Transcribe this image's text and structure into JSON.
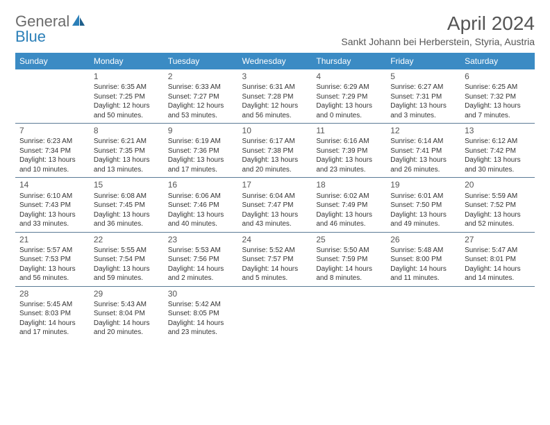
{
  "logo": {
    "text1": "General",
    "text2": "Blue"
  },
  "title": "April 2024",
  "subtitle": "Sankt Johann bei Herberstein, Styria, Austria",
  "colors": {
    "header_bg": "#3b8bc4",
    "header_text": "#ffffff",
    "row_border": "#5a7a95",
    "text": "#333333",
    "title_text": "#555555",
    "logo_gray": "#6b6b6b",
    "logo_blue": "#2b7fb8",
    "background": "#ffffff"
  },
  "day_headers": [
    "Sunday",
    "Monday",
    "Tuesday",
    "Wednesday",
    "Thursday",
    "Friday",
    "Saturday"
  ],
  "weeks": [
    [
      {
        "empty": true
      },
      {
        "num": "1",
        "sunrise": "Sunrise: 6:35 AM",
        "sunset": "Sunset: 7:25 PM",
        "daylight": "Daylight: 12 hours and 50 minutes."
      },
      {
        "num": "2",
        "sunrise": "Sunrise: 6:33 AM",
        "sunset": "Sunset: 7:27 PM",
        "daylight": "Daylight: 12 hours and 53 minutes."
      },
      {
        "num": "3",
        "sunrise": "Sunrise: 6:31 AM",
        "sunset": "Sunset: 7:28 PM",
        "daylight": "Daylight: 12 hours and 56 minutes."
      },
      {
        "num": "4",
        "sunrise": "Sunrise: 6:29 AM",
        "sunset": "Sunset: 7:29 PM",
        "daylight": "Daylight: 13 hours and 0 minutes."
      },
      {
        "num": "5",
        "sunrise": "Sunrise: 6:27 AM",
        "sunset": "Sunset: 7:31 PM",
        "daylight": "Daylight: 13 hours and 3 minutes."
      },
      {
        "num": "6",
        "sunrise": "Sunrise: 6:25 AM",
        "sunset": "Sunset: 7:32 PM",
        "daylight": "Daylight: 13 hours and 7 minutes."
      }
    ],
    [
      {
        "num": "7",
        "sunrise": "Sunrise: 6:23 AM",
        "sunset": "Sunset: 7:34 PM",
        "daylight": "Daylight: 13 hours and 10 minutes."
      },
      {
        "num": "8",
        "sunrise": "Sunrise: 6:21 AM",
        "sunset": "Sunset: 7:35 PM",
        "daylight": "Daylight: 13 hours and 13 minutes."
      },
      {
        "num": "9",
        "sunrise": "Sunrise: 6:19 AM",
        "sunset": "Sunset: 7:36 PM",
        "daylight": "Daylight: 13 hours and 17 minutes."
      },
      {
        "num": "10",
        "sunrise": "Sunrise: 6:17 AM",
        "sunset": "Sunset: 7:38 PM",
        "daylight": "Daylight: 13 hours and 20 minutes."
      },
      {
        "num": "11",
        "sunrise": "Sunrise: 6:16 AM",
        "sunset": "Sunset: 7:39 PM",
        "daylight": "Daylight: 13 hours and 23 minutes."
      },
      {
        "num": "12",
        "sunrise": "Sunrise: 6:14 AM",
        "sunset": "Sunset: 7:41 PM",
        "daylight": "Daylight: 13 hours and 26 minutes."
      },
      {
        "num": "13",
        "sunrise": "Sunrise: 6:12 AM",
        "sunset": "Sunset: 7:42 PM",
        "daylight": "Daylight: 13 hours and 30 minutes."
      }
    ],
    [
      {
        "num": "14",
        "sunrise": "Sunrise: 6:10 AM",
        "sunset": "Sunset: 7:43 PM",
        "daylight": "Daylight: 13 hours and 33 minutes."
      },
      {
        "num": "15",
        "sunrise": "Sunrise: 6:08 AM",
        "sunset": "Sunset: 7:45 PM",
        "daylight": "Daylight: 13 hours and 36 minutes."
      },
      {
        "num": "16",
        "sunrise": "Sunrise: 6:06 AM",
        "sunset": "Sunset: 7:46 PM",
        "daylight": "Daylight: 13 hours and 40 minutes."
      },
      {
        "num": "17",
        "sunrise": "Sunrise: 6:04 AM",
        "sunset": "Sunset: 7:47 PM",
        "daylight": "Daylight: 13 hours and 43 minutes."
      },
      {
        "num": "18",
        "sunrise": "Sunrise: 6:02 AM",
        "sunset": "Sunset: 7:49 PM",
        "daylight": "Daylight: 13 hours and 46 minutes."
      },
      {
        "num": "19",
        "sunrise": "Sunrise: 6:01 AM",
        "sunset": "Sunset: 7:50 PM",
        "daylight": "Daylight: 13 hours and 49 minutes."
      },
      {
        "num": "20",
        "sunrise": "Sunrise: 5:59 AM",
        "sunset": "Sunset: 7:52 PM",
        "daylight": "Daylight: 13 hours and 52 minutes."
      }
    ],
    [
      {
        "num": "21",
        "sunrise": "Sunrise: 5:57 AM",
        "sunset": "Sunset: 7:53 PM",
        "daylight": "Daylight: 13 hours and 56 minutes."
      },
      {
        "num": "22",
        "sunrise": "Sunrise: 5:55 AM",
        "sunset": "Sunset: 7:54 PM",
        "daylight": "Daylight: 13 hours and 59 minutes."
      },
      {
        "num": "23",
        "sunrise": "Sunrise: 5:53 AM",
        "sunset": "Sunset: 7:56 PM",
        "daylight": "Daylight: 14 hours and 2 minutes."
      },
      {
        "num": "24",
        "sunrise": "Sunrise: 5:52 AM",
        "sunset": "Sunset: 7:57 PM",
        "daylight": "Daylight: 14 hours and 5 minutes."
      },
      {
        "num": "25",
        "sunrise": "Sunrise: 5:50 AM",
        "sunset": "Sunset: 7:59 PM",
        "daylight": "Daylight: 14 hours and 8 minutes."
      },
      {
        "num": "26",
        "sunrise": "Sunrise: 5:48 AM",
        "sunset": "Sunset: 8:00 PM",
        "daylight": "Daylight: 14 hours and 11 minutes."
      },
      {
        "num": "27",
        "sunrise": "Sunrise: 5:47 AM",
        "sunset": "Sunset: 8:01 PM",
        "daylight": "Daylight: 14 hours and 14 minutes."
      }
    ],
    [
      {
        "num": "28",
        "sunrise": "Sunrise: 5:45 AM",
        "sunset": "Sunset: 8:03 PM",
        "daylight": "Daylight: 14 hours and 17 minutes."
      },
      {
        "num": "29",
        "sunrise": "Sunrise: 5:43 AM",
        "sunset": "Sunset: 8:04 PM",
        "daylight": "Daylight: 14 hours and 20 minutes."
      },
      {
        "num": "30",
        "sunrise": "Sunrise: 5:42 AM",
        "sunset": "Sunset: 8:05 PM",
        "daylight": "Daylight: 14 hours and 23 minutes."
      },
      {
        "empty": true
      },
      {
        "empty": true
      },
      {
        "empty": true
      },
      {
        "empty": true
      }
    ]
  ]
}
